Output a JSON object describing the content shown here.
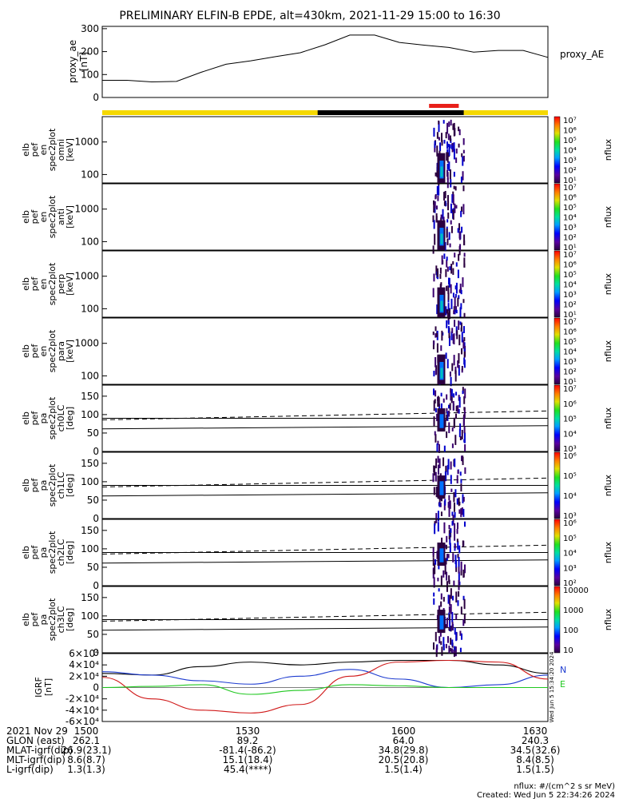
{
  "title": "PRELIMINARY ELFIN-B EPDE, alt=430km, 2021-11-29 15:00 to 16:30",
  "colors": {
    "quality_yellow": "#f5d800",
    "quality_black": "#000000",
    "science_red": "#e8201a",
    "grf_black": "#000000",
    "grf_blue": "#1e3cd0",
    "grf_red": "#d01818",
    "grf_green": "#20c820"
  },
  "chart_data": [
    {
      "type": "line",
      "id": "proxy_ae",
      "ylabel": "proxy_ae\n[nT]",
      "legend": "proxy_AE",
      "yticks": [
        "0",
        "100",
        "200",
        "300"
      ],
      "ylim": [
        0,
        310
      ],
      "x_minutes": [
        0,
        5,
        10,
        15,
        20,
        25,
        30,
        35,
        40,
        45,
        50,
        55,
        60,
        65,
        70,
        75,
        80,
        85,
        90
      ],
      "values": [
        75,
        75,
        68,
        70,
        110,
        145,
        160,
        178,
        195,
        230,
        272,
        272,
        240,
        228,
        218,
        198,
        205,
        205,
        175
      ]
    },
    {
      "type": "heatmap",
      "id": "en_omni",
      "ylabel": [
        "elb",
        "pef",
        "en",
        "spec2plot",
        "omni",
        "[keV]"
      ],
      "yticks": [
        "100",
        "1000"
      ],
      "colorbar_ticks": [
        "10¹",
        "10²",
        "10³",
        "10⁴",
        "10⁵",
        "10⁶",
        "10⁷"
      ],
      "colorbar_label": "nflux"
    },
    {
      "type": "heatmap",
      "id": "en_anti",
      "ylabel": [
        "elb",
        "pef",
        "en",
        "spec2plot",
        "anti",
        "[keV]"
      ],
      "yticks": [
        "100",
        "1000"
      ],
      "colorbar_ticks": [
        "10¹",
        "10²",
        "10³",
        "10⁴",
        "10⁵",
        "10⁶",
        "10⁷"
      ],
      "colorbar_label": "nflux"
    },
    {
      "type": "heatmap",
      "id": "en_perp",
      "ylabel": [
        "elb",
        "pef",
        "en",
        "spec2plot",
        "perp",
        "[keV]"
      ],
      "yticks": [
        "100",
        "1000"
      ],
      "colorbar_ticks": [
        "10¹",
        "10²",
        "10³",
        "10⁴",
        "10⁵",
        "10⁶",
        "10⁷"
      ],
      "colorbar_label": "nflux"
    },
    {
      "type": "heatmap",
      "id": "en_para",
      "ylabel": [
        "elb",
        "pef",
        "en",
        "spec2plot",
        "para",
        "[keV]"
      ],
      "yticks": [
        "100",
        "1000"
      ],
      "colorbar_ticks": [
        "10¹",
        "10²",
        "10³",
        "10⁴",
        "10⁵",
        "10⁶",
        "10⁷"
      ],
      "colorbar_label": "nflux"
    },
    {
      "type": "heatmap",
      "id": "pa_ch0",
      "ylabel": [
        "elb",
        "pef",
        "pa",
        "spec2plot",
        "ch0LC",
        "[deg]"
      ],
      "yticks": [
        "0",
        "50",
        "100",
        "150"
      ],
      "colorbar_ticks": [
        "10³",
        "10⁴",
        "10⁵",
        "10⁶",
        "10⁷"
      ],
      "colorbar_label": "nflux"
    },
    {
      "type": "heatmap",
      "id": "pa_ch1",
      "ylabel": [
        "elb",
        "pef",
        "pa",
        "spec2plot",
        "ch1LC",
        "[deg]"
      ],
      "yticks": [
        "0",
        "50",
        "100",
        "150"
      ],
      "colorbar_ticks": [
        "10³",
        "10⁴",
        "10⁵",
        "10⁶"
      ],
      "colorbar_label": "nflux"
    },
    {
      "type": "heatmap",
      "id": "pa_ch2",
      "ylabel": [
        "elb",
        "pef",
        "pa",
        "spec2plot",
        "ch2LC",
        "[deg]"
      ],
      "yticks": [
        "0",
        "50",
        "100",
        "150"
      ],
      "colorbar_ticks": [
        "10²",
        "10³",
        "10⁴",
        "10⁵",
        "10⁶"
      ],
      "colorbar_label": "nflux"
    },
    {
      "type": "heatmap",
      "id": "pa_ch3",
      "ylabel": [
        "elb",
        "pef",
        "pa",
        "spec2plot",
        "ch3LC",
        "[deg]"
      ],
      "yticks": [
        "0",
        "50",
        "100",
        "150"
      ],
      "colorbar_ticks": [
        "10",
        "100",
        "1000",
        "10000"
      ],
      "colorbar_label": "nflux"
    },
    {
      "type": "line",
      "id": "igrf",
      "ylabel": [
        "IGRF",
        "[nT]"
      ],
      "yticks": [
        "-6×10⁴",
        "-4×10⁴",
        "-2×10⁴",
        "0",
        "2×10⁴",
        "4×10⁴",
        "6×10⁴"
      ],
      "ylim": [
        -60000,
        60000
      ],
      "legend": [
        "N",
        "E"
      ],
      "side_note": "Wed Jun  5 15:34:20 2024",
      "series": [
        {
          "name": "",
          "color": "black",
          "x_minutes": [
            0,
            10,
            20,
            30,
            40,
            50,
            60,
            70,
            80,
            90
          ],
          "values": [
            25000,
            22000,
            37000,
            45000,
            40000,
            45000,
            48000,
            48000,
            40000,
            25000
          ]
        },
        {
          "name": "",
          "color": "blue",
          "x_minutes": [
            0,
            10,
            20,
            30,
            40,
            50,
            60,
            70,
            80,
            90
          ],
          "values": [
            28000,
            22000,
            12000,
            6000,
            20000,
            32000,
            15000,
            0,
            5000,
            22000
          ]
        },
        {
          "name": "",
          "color": "red",
          "x_minutes": [
            0,
            10,
            20,
            30,
            40,
            50,
            60,
            70,
            80,
            90
          ],
          "values": [
            18000,
            -20000,
            -40000,
            -45000,
            -30000,
            20000,
            45000,
            48000,
            45000,
            15000
          ]
        },
        {
          "name": "E",
          "color": "green",
          "x_minutes": [
            0,
            10,
            20,
            30,
            40,
            50,
            60,
            70,
            80,
            90
          ],
          "values": [
            0,
            2000,
            5000,
            -12000,
            -5000,
            5000,
            3000,
            0,
            0,
            0
          ]
        }
      ]
    }
  ],
  "footer": {
    "rows": [
      {
        "label": "2021 Nov 29",
        "values": [
          "1500",
          "1530",
          "1600",
          "1630"
        ]
      },
      {
        "label": "GLON (east)",
        "values": [
          "262.1",
          "89.2",
          "64.0",
          "240.3"
        ]
      },
      {
        "label": "MLAT-igrf(dip)",
        "values": [
          "26.9(23.1)",
          "-81.4(-86.2)",
          "34.8(29.8)",
          "34.5(32.6)"
        ]
      },
      {
        "label": "MLT-igrf(dip)",
        "values": [
          "8.6(8.7)",
          "15.1(18.4)",
          "20.5(20.8)",
          "8.4(8.5)"
        ]
      },
      {
        "label": "L-igrf(dip)",
        "values": [
          "1.3(1.3)",
          "45.4(****)",
          "1.5(1.4)",
          "1.5(1.5)"
        ]
      }
    ],
    "units_note": "nflux: #/(cm^2 s sr MeV)",
    "created": "Created: Wed Jun  5 22:34:26 2024"
  }
}
